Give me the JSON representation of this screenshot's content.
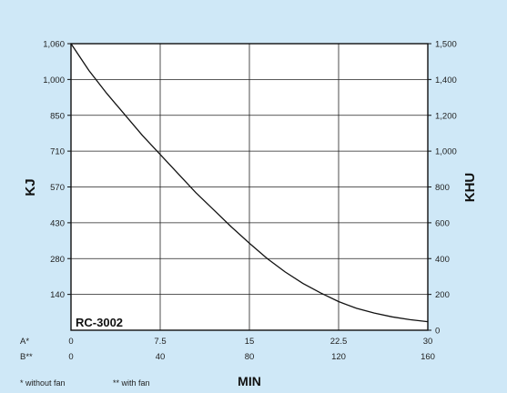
{
  "chart_data": {
    "type": "line",
    "model_label": "RC-3002",
    "left_axis": {
      "label": "KJ",
      "ticks": [
        "1,060",
        "1,000",
        "850",
        "710",
        "570",
        "430",
        "280",
        "140"
      ]
    },
    "right_axis": {
      "label": "KHU",
      "ticks": [
        "1,500",
        "1,400",
        "1,200",
        "1,000",
        "800",
        "600",
        "400",
        "200",
        "0"
      ],
      "ylim": [
        0,
        1500
      ]
    },
    "x_axis": {
      "label": "MIN",
      "rows": [
        {
          "prefix": "A*",
          "ticks": [
            "0",
            "7.5",
            "15",
            "22.5",
            "30"
          ]
        },
        {
          "prefix": "B**",
          "ticks": [
            "0",
            "40",
            "80",
            "120",
            "160"
          ]
        }
      ],
      "xlim": [
        0,
        30
      ]
    },
    "footnotes": [
      "* without fan",
      "** with fan"
    ],
    "grid": true,
    "series": [
      {
        "x": [
          0,
          1.5,
          3,
          4.5,
          6,
          7.5,
          9,
          10.5,
          12,
          13.5,
          15,
          16.5,
          18,
          19.5,
          21,
          22.5,
          24,
          25.5,
          27,
          28.5,
          30
        ],
        "y": [
          1500,
          1360,
          1240,
          1130,
          1020,
          920,
          820,
          720,
          630,
          540,
          455,
          375,
          305,
          245,
          195,
          150,
          115,
          90,
          70,
          55,
          45
        ]
      }
    ]
  }
}
